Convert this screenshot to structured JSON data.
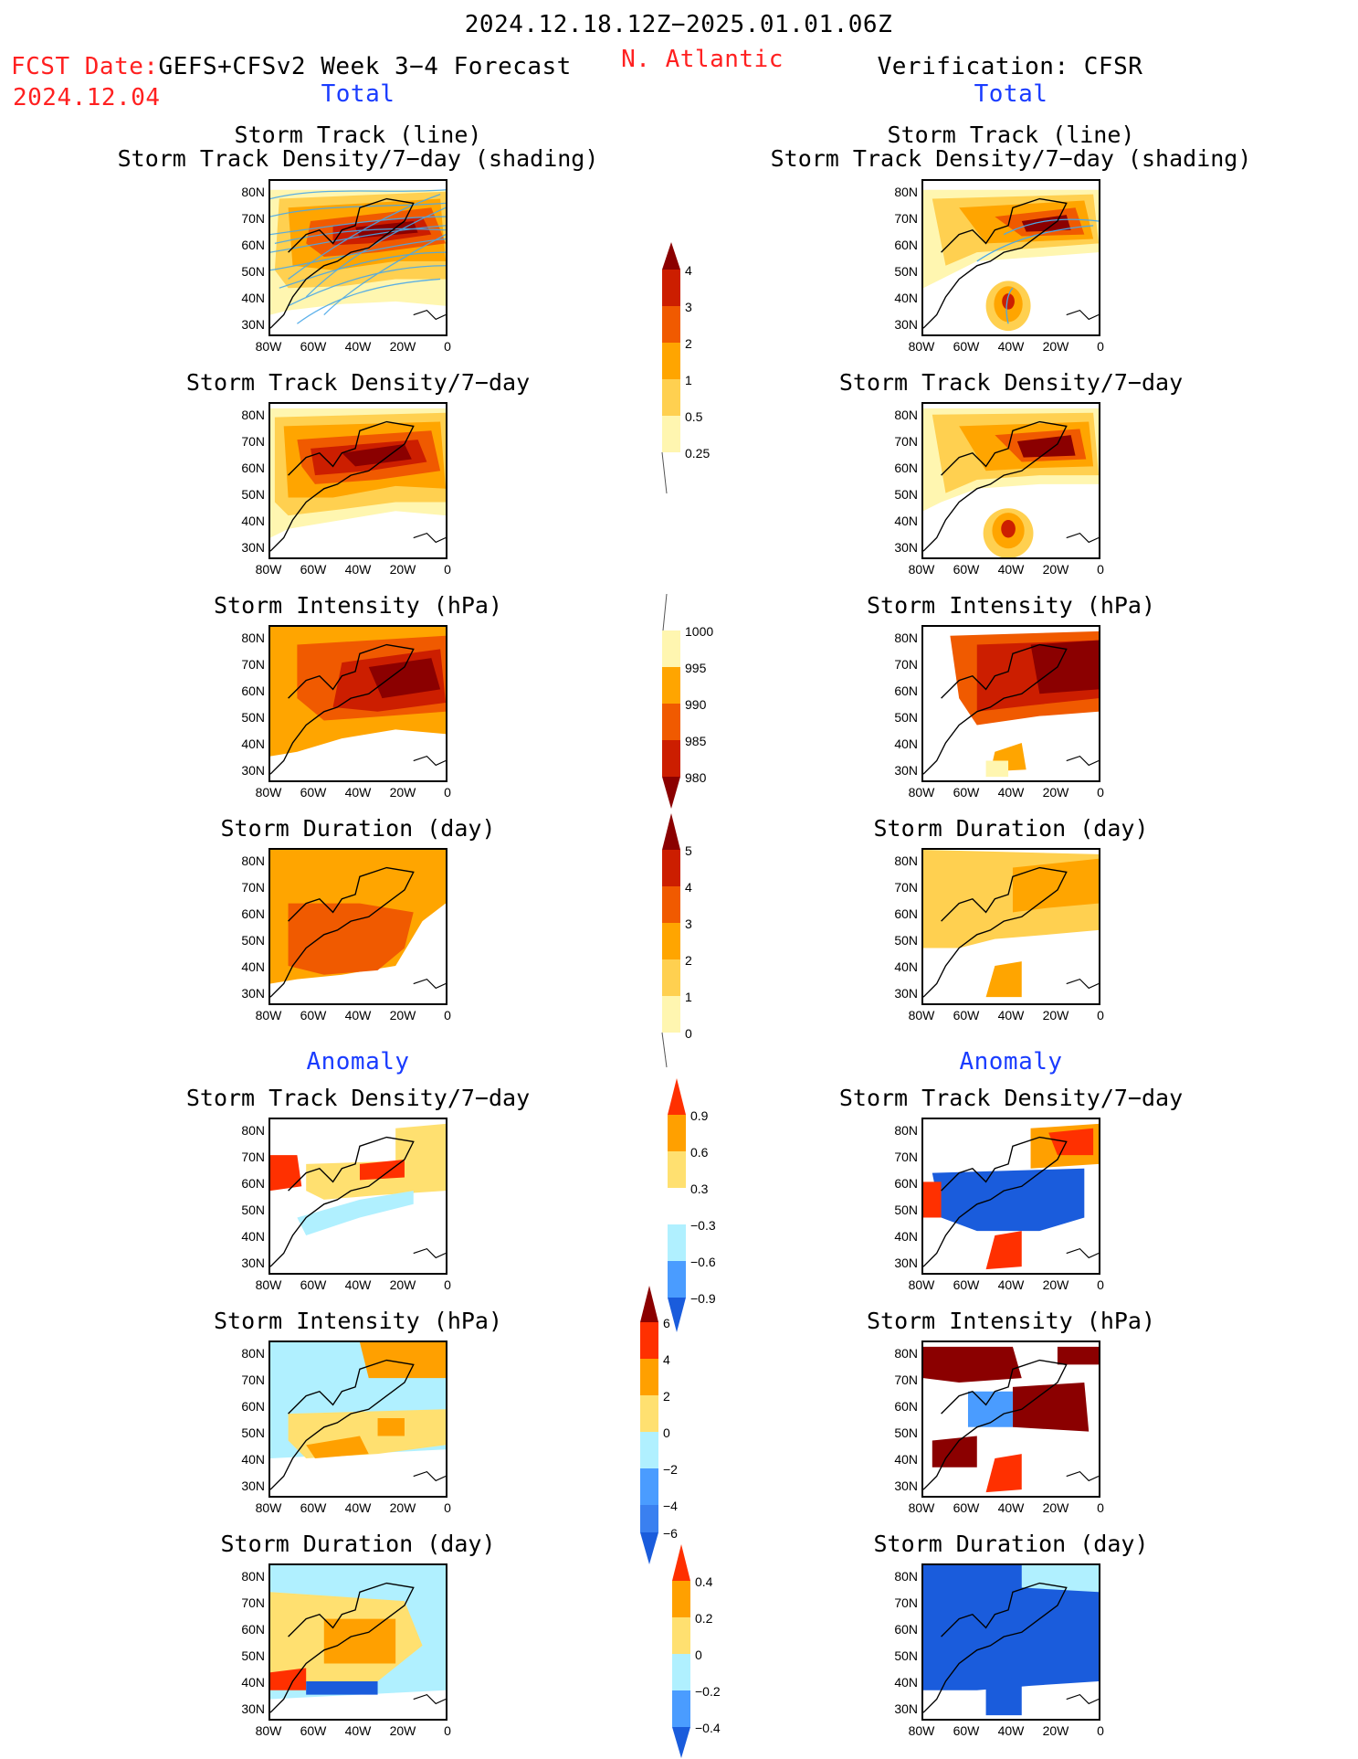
{
  "header": {
    "period": "2024.12.18.12Z−2025.01.01.06Z",
    "fcst_date_label": "FCST Date:",
    "fcst_date": "2024.12.04",
    "forecast_title": "GEFS+CFSv2 Week 3−4 Forecast",
    "region": "N. Atlantic",
    "verification": "Verification: CFSR",
    "total_label": "Total",
    "anomaly_label": "Anomaly"
  },
  "axes": {
    "lat_ticks": [
      "80N",
      "70N",
      "60N",
      "50N",
      "40N",
      "30N"
    ],
    "lon_ticks": [
      "80W",
      "60W",
      "40W",
      "20W",
      "0"
    ]
  },
  "panels": {
    "track_title_1": "Storm Track (line)",
    "track_title_2": "Storm Track Density/7−day (shading)",
    "density": "Storm Track Density/7−day",
    "intensity": "Storm Intensity (hPa)",
    "duration": "Storm Duration (day)"
  },
  "colorbars": {
    "density_total": {
      "labels": [
        "4",
        "3",
        "2",
        "1",
        "0.5",
        "0.25"
      ],
      "colors": [
        "#8b0000",
        "#cc1e00",
        "#f05a00",
        "#ffa500",
        "#ffd050",
        "#fff6b0"
      ]
    },
    "intensity_total": {
      "labels": [
        "1000",
        "995",
        "990",
        "985",
        "980"
      ],
      "colors": [
        "#fff6b0",
        "#ffa500",
        "#f05a00",
        "#cc1e00",
        "#8b0000"
      ]
    },
    "duration_total": {
      "labels": [
        "5",
        "4",
        "3",
        "2",
        "1",
        "0"
      ],
      "colors": [
        "#8b0000",
        "#cc1e00",
        "#f05a00",
        "#ffa500",
        "#ffd050",
        "#fff6b0"
      ]
    },
    "density_anom": {
      "labels": [
        "0.9",
        "0.6",
        "0.3",
        "−0.3",
        "−0.6",
        "−0.9"
      ],
      "colors": [
        "#ff3000",
        "#ffa000",
        "#ffe070",
        "#ffffff",
        "#b0f0ff",
        "#4a9cff",
        "#1a5cdc"
      ]
    },
    "intensity_anom": {
      "labels": [
        "6",
        "4",
        "2",
        "0",
        "−2",
        "−4",
        "−6"
      ],
      "colors": [
        "#8b0000",
        "#ff3000",
        "#ffa000",
        "#ffe070",
        "#b0f0ff",
        "#4a9cff",
        "#1a5cdc"
      ]
    },
    "duration_anom": {
      "labels": [
        "0.4",
        "0.2",
        "0",
        "−0.2",
        "−0.4"
      ],
      "colors": [
        "#ff3000",
        "#ffa000",
        "#ffe070",
        "#b0f0ff",
        "#4a9cff",
        "#1a5cdc"
      ]
    }
  }
}
